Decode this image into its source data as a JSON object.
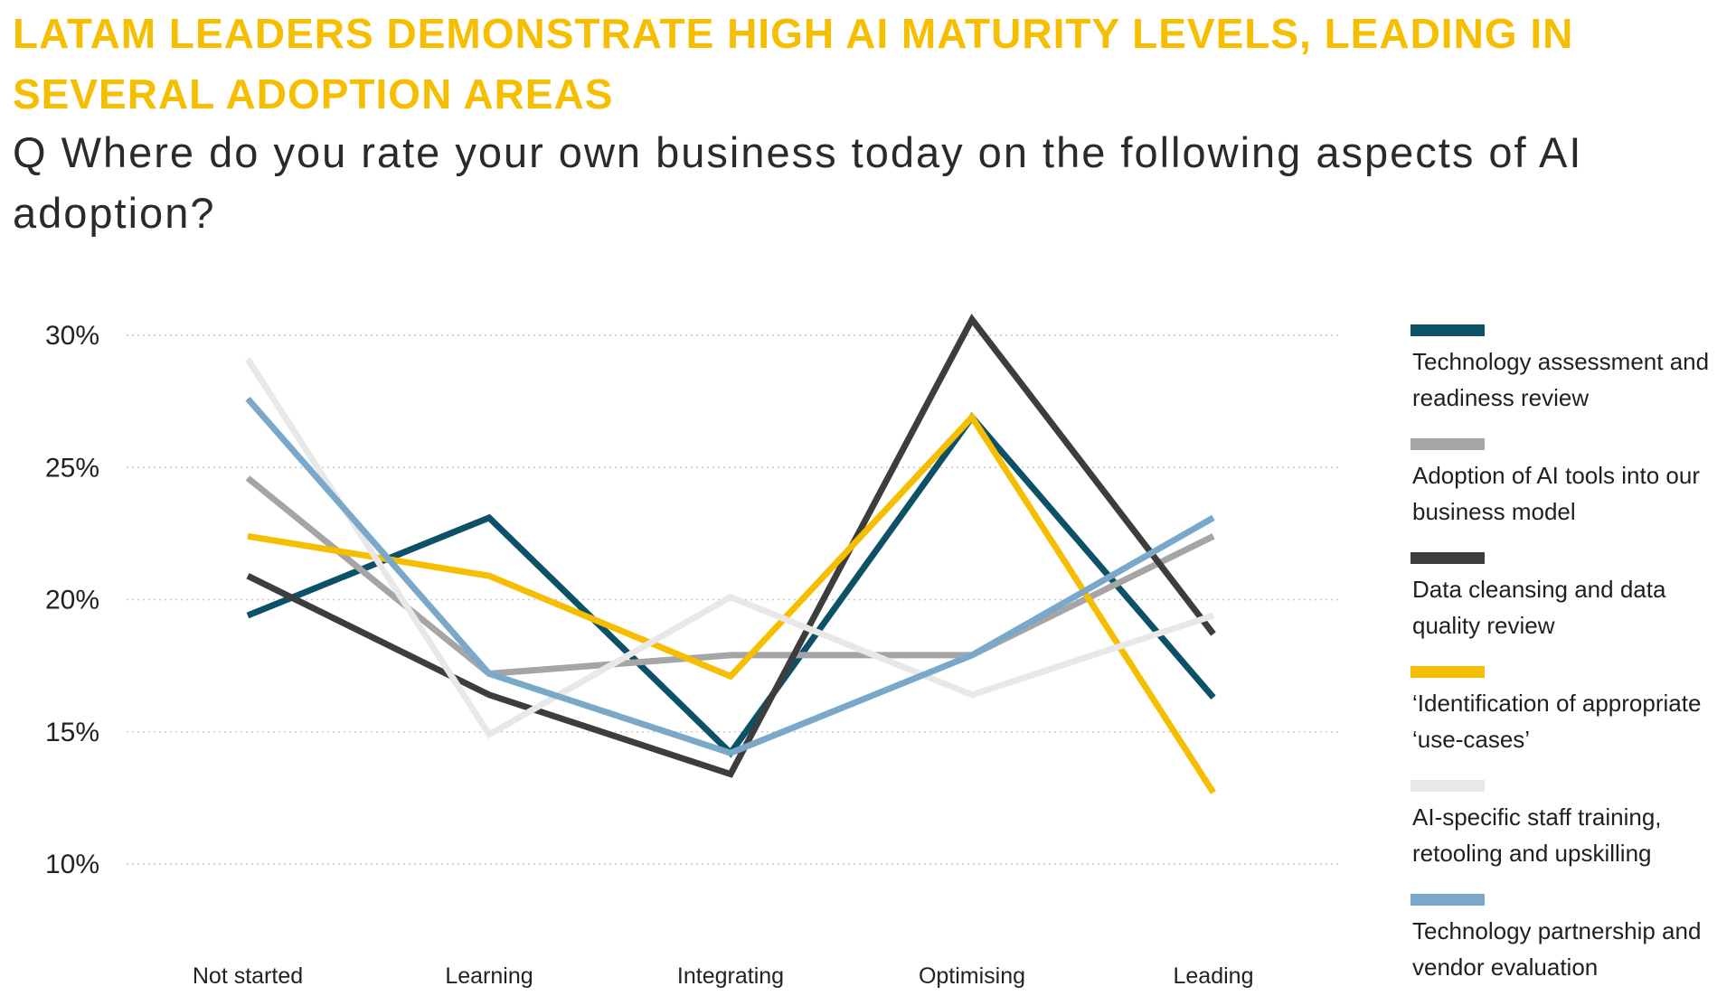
{
  "headline": "LATAM LEADERS DEMONSTRATE HIGH AI MATURITY LEVELS, LEADING IN SEVERAL ADOPTION AREAS",
  "question": "Q Where do you rate your own business today on the following aspects of AI adoption?",
  "chart_data": {
    "type": "line",
    "title": "",
    "xlabel": "",
    "ylabel": "",
    "categories": [
      "Not started",
      "Learning",
      "Integrating",
      "Optimising",
      "Leading"
    ],
    "ylim": [
      10,
      30
    ],
    "yticks": [
      10,
      15,
      20,
      25,
      30
    ],
    "ytick_labels": [
      "10%",
      "15%",
      "20%",
      "25%",
      "30%"
    ],
    "grid": true,
    "legend_position": "right",
    "series": [
      {
        "name": "Technology assessment and readiness review",
        "color": "#0c5167",
        "values": [
          19.4,
          23.1,
          14.2,
          26.9,
          16.3
        ]
      },
      {
        "name": "Adoption of AI tools into our business model",
        "color": "#a5a5a5",
        "values": [
          24.6,
          17.2,
          17.9,
          17.9,
          22.4
        ]
      },
      {
        "name": "Data cleansing and data quality review",
        "color": "#3d3d3d",
        "values": [
          20.9,
          16.4,
          13.4,
          30.6,
          18.7
        ]
      },
      {
        "name": "‘Identification of appropriate ‘use-cases’",
        "color": "#f6be00",
        "values": [
          22.4,
          20.9,
          17.1,
          26.9,
          12.7
        ]
      },
      {
        "name": "AI-specific staff training, retooling and upskilling",
        "color": "#e8e8e8",
        "values": [
          29.1,
          14.9,
          20.1,
          16.4,
          19.4
        ]
      },
      {
        "name": "Technology partnership and vendor evaluation",
        "color": "#7aa8cb",
        "values": [
          27.6,
          17.2,
          14.2,
          17.9,
          23.1
        ]
      }
    ]
  }
}
